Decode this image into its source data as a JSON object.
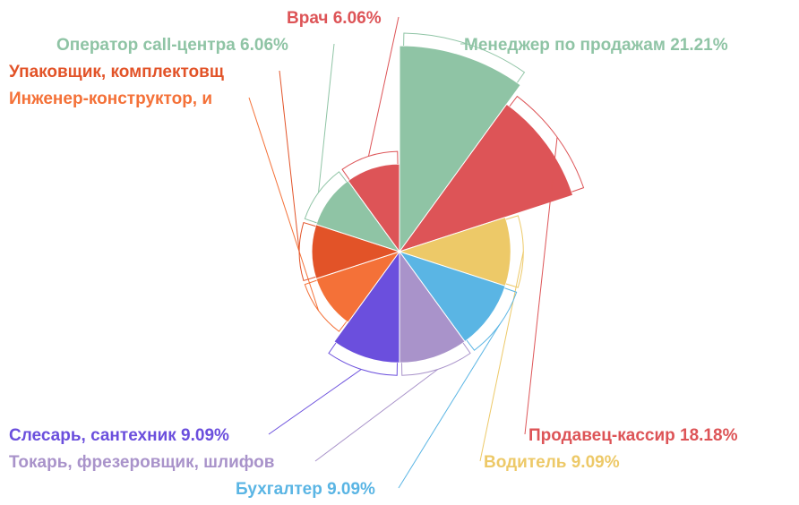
{
  "chart_data": {
    "type": "pie",
    "variant": "nightingale-rose",
    "title": "",
    "legend": "none",
    "slices": [
      {
        "label": "Менеджер по продажам 21.21%",
        "name": "Менеджер по продажам",
        "value": 21.21,
        "color": "#8fc4a5"
      },
      {
        "label": "Продавец-кассир 18.18%",
        "name": "Продавец-кассир",
        "value": 18.18,
        "color": "#dd5457"
      },
      {
        "label": "Водитель 9.09%",
        "name": "Водитель",
        "value": 9.09,
        "color": "#edc968"
      },
      {
        "label": "Бухгалтер 9.09%",
        "name": "Бухгалтер",
        "value": 9.09,
        "color": "#5ab5e4"
      },
      {
        "label": "Токарь, фрезеровщик, шлифов",
        "name": "Токарь, фрезеровщик, шлифов",
        "value": 9.09,
        "color": "#a993ca"
      },
      {
        "label": "Слесарь, сантехник 9.09%",
        "name": "Слесарь, сантехник",
        "value": 9.09,
        "color": "#6b4fdd"
      },
      {
        "label": "Инженер-конструктор, и",
        "name": "Инженер-конструктор, и",
        "value": 6.06,
        "color": "#f47138"
      },
      {
        "label": "Упаковщик, комплектовщ",
        "name": "Упаковщик, комплектовщ",
        "value": 6.06,
        "color": "#e25328"
      },
      {
        "label": "Оператор call-центра 6.06%",
        "name": "Оператор call-центра",
        "value": 6.06,
        "color": "#8fc4a5"
      },
      {
        "label": "Врач 6.06%",
        "name": "Врач",
        "value": 6.06,
        "color": "#dd5457"
      }
    ]
  }
}
